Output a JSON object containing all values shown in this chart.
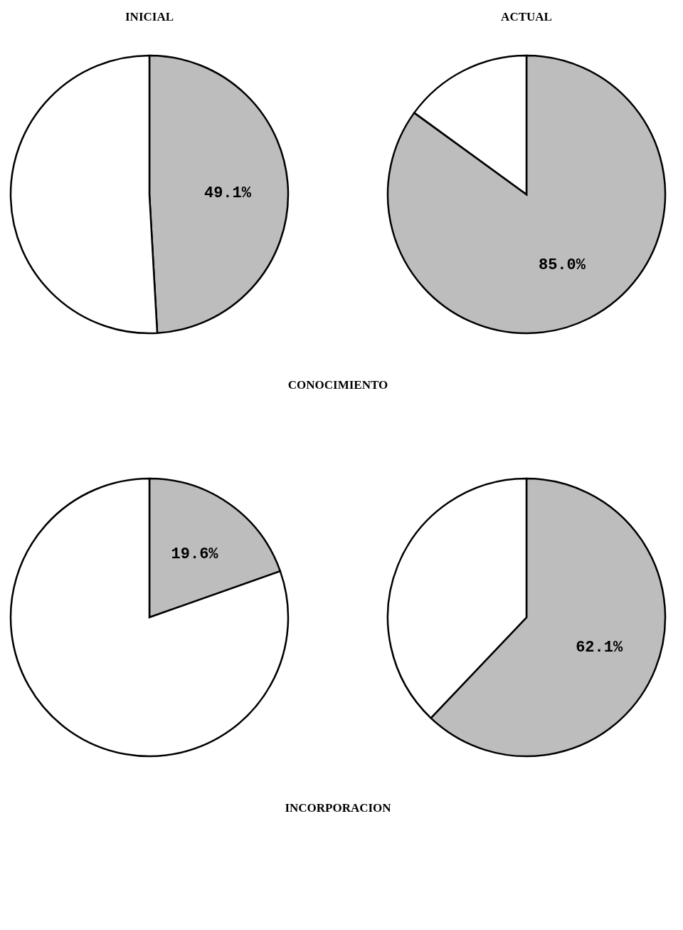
{
  "chart_data": [
    {
      "type": "pie",
      "title": "INICIAL",
      "categories": [
        null,
        null
      ],
      "values": [
        49.1,
        50.9
      ],
      "value_labels": [
        "49.1%",
        null
      ],
      "colors": [
        "#bdbdbd",
        "#ffffff"
      ],
      "legend": false,
      "annotations": [
        "CONOCIMIENTO"
      ]
    },
    {
      "type": "pie",
      "title": "ACTUAL",
      "categories": [
        null,
        null
      ],
      "values": [
        85.0,
        15.0
      ],
      "value_labels": [
        "85.0%",
        null
      ],
      "colors": [
        "#bdbdbd",
        "#ffffff"
      ],
      "legend": false
    },
    {
      "type": "pie",
      "categories": [
        null,
        null
      ],
      "values": [
        19.6,
        80.4
      ],
      "value_labels": [
        "19.6%",
        null
      ],
      "colors": [
        "#bdbdbd",
        "#ffffff"
      ],
      "legend": false,
      "annotations": [
        "INCORPORACION"
      ]
    },
    {
      "type": "pie",
      "categories": [
        null,
        null
      ],
      "values": [
        62.1,
        37.9
      ],
      "value_labels": [
        "62.1%",
        null
      ],
      "colors": [
        "#bdbdbd",
        "#ffffff"
      ],
      "legend": false
    }
  ]
}
